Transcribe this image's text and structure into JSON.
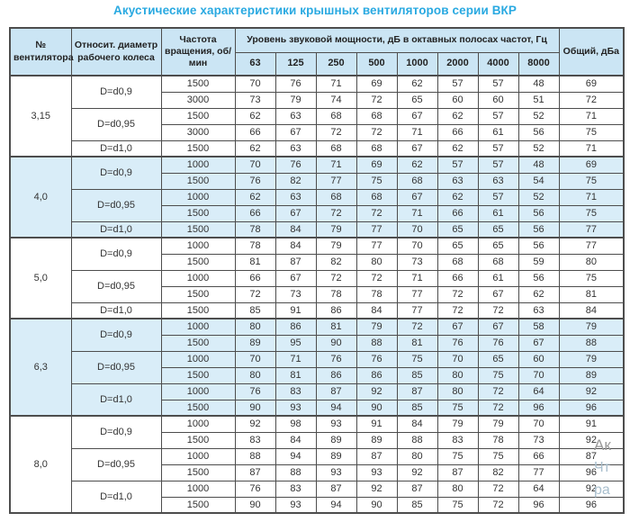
{
  "page_title": "Акустические характеристики крышных вентиляторов серии ВКР",
  "colors": {
    "title": "#29a9e1",
    "header_bg": "#cbe5f4",
    "stripe_bg": "#d9edf8",
    "border": "#4d4d4d",
    "text": "#333333"
  },
  "table": {
    "headers": {
      "fan_number": "№ вентилятора",
      "diameter": "Относит. диаметр рабочего колеса",
      "speed": "Частота вращения, об/мин",
      "octave_group": "Уровень звуковой мощности, дБ в октавных полосах частот, Гц",
      "octave_bands": [
        "63",
        "125",
        "250",
        "500",
        "1000",
        "2000",
        "4000",
        "8000"
      ],
      "total": "Общий, дБа"
    },
    "groups": [
      {
        "fan": "3,15",
        "shaded": false,
        "blocks": [
          {
            "diameter": "D=d0,9",
            "rows": [
              {
                "speed": "1500",
                "values": [
                  70,
                  76,
                  71,
                  69,
                  62,
                  57,
                  57,
                  48
                ],
                "total": 69
              },
              {
                "speed": "3000",
                "values": [
                  73,
                  79,
                  74,
                  72,
                  65,
                  60,
                  60,
                  51
                ],
                "total": 72
              }
            ]
          },
          {
            "diameter": "D=d0,95",
            "rows": [
              {
                "speed": "1500",
                "values": [
                  62,
                  63,
                  68,
                  68,
                  67,
                  62,
                  57,
                  52
                ],
                "total": 71
              },
              {
                "speed": "3000",
                "values": [
                  66,
                  67,
                  72,
                  72,
                  71,
                  66,
                  61,
                  56
                ],
                "total": 75
              }
            ]
          },
          {
            "diameter": "D=d1,0",
            "rows": [
              {
                "speed": "1500",
                "values": [
                  62,
                  63,
                  68,
                  68,
                  67,
                  62,
                  57,
                  52
                ],
                "total": 71
              }
            ]
          }
        ]
      },
      {
        "fan": "4,0",
        "shaded": true,
        "blocks": [
          {
            "diameter": "D=d0,9",
            "rows": [
              {
                "speed": "1000",
                "values": [
                  70,
                  76,
                  71,
                  69,
                  62,
                  57,
                  57,
                  48
                ],
                "total": 69
              },
              {
                "speed": "1500",
                "values": [
                  76,
                  82,
                  77,
                  75,
                  68,
                  63,
                  63,
                  54
                ],
                "total": 75
              }
            ]
          },
          {
            "diameter": "D=d0,95",
            "rows": [
              {
                "speed": "1000",
                "values": [
                  62,
                  63,
                  68,
                  68,
                  67,
                  62,
                  57,
                  52
                ],
                "total": 71
              },
              {
                "speed": "1500",
                "values": [
                  66,
                  67,
                  72,
                  72,
                  71,
                  66,
                  61,
                  56
                ],
                "total": 75
              }
            ]
          },
          {
            "diameter": "D=d1,0",
            "rows": [
              {
                "speed": "1500",
                "values": [
                  78,
                  84,
                  79,
                  77,
                  70,
                  65,
                  65,
                  56
                ],
                "total": 77
              }
            ]
          }
        ]
      },
      {
        "fan": "5,0",
        "shaded": false,
        "blocks": [
          {
            "diameter": "D=d0,9",
            "rows": [
              {
                "speed": "1000",
                "values": [
                  78,
                  84,
                  79,
                  77,
                  70,
                  65,
                  65,
                  56
                ],
                "total": 77
              },
              {
                "speed": "1500",
                "values": [
                  81,
                  87,
                  82,
                  80,
                  73,
                  68,
                  68,
                  59
                ],
                "total": 80
              }
            ]
          },
          {
            "diameter": "D=d0,95",
            "rows": [
              {
                "speed": "1000",
                "values": [
                  66,
                  67,
                  72,
                  72,
                  71,
                  66,
                  61,
                  56
                ],
                "total": 75
              },
              {
                "speed": "1500",
                "values": [
                  72,
                  73,
                  78,
                  78,
                  77,
                  72,
                  67,
                  62
                ],
                "total": 81
              }
            ]
          },
          {
            "diameter": "D=d1,0",
            "rows": [
              {
                "speed": "1500",
                "values": [
                  85,
                  91,
                  86,
                  84,
                  77,
                  72,
                  72,
                  63
                ],
                "total": 84
              }
            ]
          }
        ]
      },
      {
        "fan": "6,3",
        "shaded": true,
        "blocks": [
          {
            "diameter": "D=d0,9",
            "rows": [
              {
                "speed": "1000",
                "values": [
                  80,
                  86,
                  81,
                  79,
                  72,
                  67,
                  67,
                  58
                ],
                "total": 79
              },
              {
                "speed": "1500",
                "values": [
                  89,
                  95,
                  90,
                  88,
                  81,
                  76,
                  76,
                  67
                ],
                "total": 88
              }
            ]
          },
          {
            "diameter": "D=d0,95",
            "rows": [
              {
                "speed": "1000",
                "values": [
                  70,
                  71,
                  76,
                  76,
                  75,
                  70,
                  65,
                  60
                ],
                "total": 79
              },
              {
                "speed": "1500",
                "values": [
                  80,
                  81,
                  86,
                  86,
                  85,
                  80,
                  75,
                  70
                ],
                "total": 89
              }
            ]
          },
          {
            "diameter": "D=d1,0",
            "rows": [
              {
                "speed": "1000",
                "values": [
                  76,
                  83,
                  87,
                  92,
                  87,
                  80,
                  72,
                  64
                ],
                "total": 92
              },
              {
                "speed": "1500",
                "values": [
                  90,
                  93,
                  94,
                  90,
                  85,
                  75,
                  72,
                  96
                ],
                "total": 96
              }
            ]
          }
        ]
      },
      {
        "fan": "8,0",
        "shaded": false,
        "blocks": [
          {
            "diameter": "D=d0,9",
            "rows": [
              {
                "speed": "1000",
                "values": [
                  92,
                  98,
                  93,
                  91,
                  84,
                  79,
                  79,
                  70
                ],
                "total": 91
              },
              {
                "speed": "1500",
                "values": [
                  83,
                  84,
                  89,
                  89,
                  88,
                  83,
                  78,
                  73
                ],
                "total": 92
              }
            ]
          },
          {
            "diameter": "D=d0,95",
            "rows": [
              {
                "speed": "1000",
                "values": [
                  88,
                  94,
                  89,
                  87,
                  80,
                  75,
                  75,
                  66
                ],
                "total": 87
              },
              {
                "speed": "1500",
                "values": [
                  87,
                  88,
                  93,
                  93,
                  92,
                  87,
                  82,
                  77
                ],
                "total": 96
              }
            ]
          },
          {
            "diameter": "D=d1,0",
            "rows": [
              {
                "speed": "1000",
                "values": [
                  76,
                  83,
                  87,
                  92,
                  87,
                  80,
                  72,
                  64
                ],
                "total": 92
              },
              {
                "speed": "1500",
                "values": [
                  90,
                  93,
                  94,
                  90,
                  85,
                  75,
                  72,
                  96
                ],
                "total": 96
              }
            ]
          }
        ]
      }
    ]
  },
  "watermark": {
    "fragments": [
      "Ак",
      "Чт",
      "ра"
    ]
  }
}
